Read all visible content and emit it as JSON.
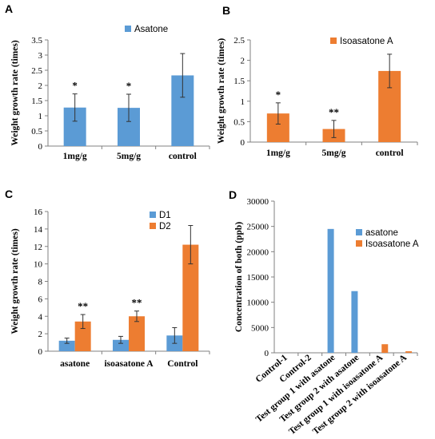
{
  "colors": {
    "blue": "#5b9bd5",
    "orange": "#ed7d31"
  },
  "chart_data": [
    {
      "panel": "A",
      "type": "bar",
      "ylabel": "Weight growth rate (times)",
      "ylim": [
        0,
        3.5
      ],
      "yticks": [
        0,
        0.5,
        1,
        1.5,
        2,
        2.5,
        3,
        3.5
      ],
      "ytick_labels": [
        "0",
        "0.5",
        "1",
        "1.5",
        "2",
        "2.5",
        "3",
        "3.5"
      ],
      "categories": [
        "1mg/g",
        "5mg/g",
        "control"
      ],
      "series": [
        {
          "name": "Asatone",
          "color": "blue",
          "values": [
            1.27,
            1.26,
            2.33
          ],
          "errors": [
            0.45,
            0.45,
            0.72
          ]
        }
      ],
      "annotations": [
        {
          "category": 0,
          "series": 0,
          "text": "*"
        },
        {
          "category": 1,
          "series": 0,
          "text": "*"
        }
      ],
      "legend": "top-left"
    },
    {
      "panel": "B",
      "type": "bar",
      "ylabel": "Weight growth rate (times)",
      "ylim": [
        0,
        2.5
      ],
      "yticks": [
        0,
        0.5,
        1,
        1.5,
        2,
        2.5
      ],
      "ytick_labels": [
        "0",
        "0.5",
        "1",
        "1.5",
        "2",
        "2.5"
      ],
      "categories": [
        "1mg/g",
        "5mg/g",
        "control"
      ],
      "series": [
        {
          "name": "Isoasatone A",
          "color": "orange",
          "values": [
            0.7,
            0.32,
            1.74
          ],
          "errors": [
            0.26,
            0.21,
            0.41
          ]
        }
      ],
      "annotations": [
        {
          "category": 0,
          "series": 0,
          "text": "*"
        },
        {
          "category": 1,
          "series": 0,
          "text": "**"
        }
      ],
      "legend": "top-left"
    },
    {
      "panel": "C",
      "type": "bar",
      "ylabel": "Weight growth rate (times)",
      "ylim": [
        0,
        16
      ],
      "yticks": [
        0,
        2,
        4,
        6,
        8,
        10,
        12,
        14,
        16
      ],
      "ytick_labels": [
        "0",
        "2",
        "4",
        "6",
        "8",
        "10",
        "12",
        "14",
        "16"
      ],
      "categories": [
        "asatone",
        "isoasatone A",
        "Control"
      ],
      "series": [
        {
          "name": "D1",
          "color": "blue",
          "values": [
            1.2,
            1.3,
            1.8
          ],
          "errors": [
            0.3,
            0.4,
            0.9
          ]
        },
        {
          "name": "D2",
          "color": "orange",
          "values": [
            3.4,
            4.0,
            12.2
          ],
          "errors": [
            0.8,
            0.6,
            2.2
          ]
        }
      ],
      "annotations": [
        {
          "category": 0,
          "series": 1,
          "text": "**"
        },
        {
          "category": 1,
          "series": 1,
          "text": "**"
        }
      ],
      "legend": "top-left"
    },
    {
      "panel": "D",
      "type": "bar",
      "ylabel": "Concentration of both (ppb)",
      "ylim": [
        0,
        30000
      ],
      "yticks": [
        0,
        5000,
        10000,
        15000,
        20000,
        25000,
        30000
      ],
      "ytick_labels": [
        "0",
        "5000",
        "10000",
        "15000",
        "20000",
        "25000",
        "30000"
      ],
      "categories": [
        "Control-1",
        "Control-2",
        "Test group 1 with asatone",
        "Test group 2 with asatone",
        "Test group 1 with isoasatone A",
        "Test group 2 with isoasatone A"
      ],
      "series": [
        {
          "name": "asatone",
          "color": "blue",
          "values": [
            0,
            0,
            24500,
            12200,
            0,
            0
          ]
        },
        {
          "name": "Isoasatone A",
          "color": "orange",
          "values": [
            0,
            0,
            0,
            0,
            1700,
            300
          ]
        }
      ],
      "legend": "top-right"
    }
  ]
}
